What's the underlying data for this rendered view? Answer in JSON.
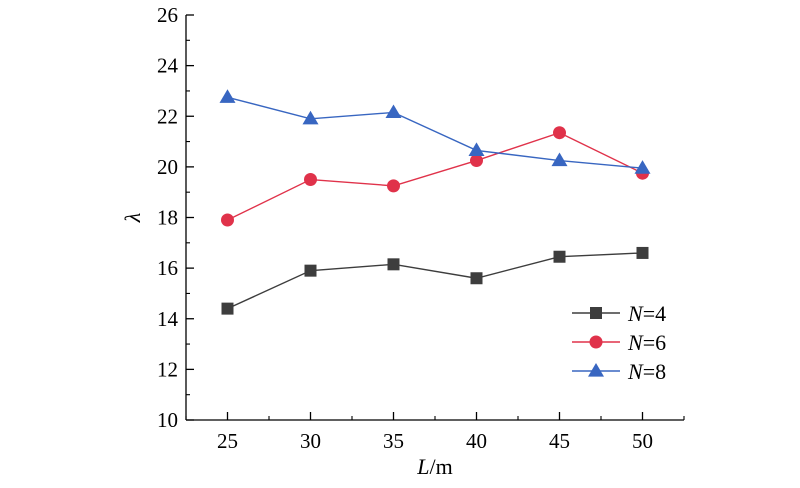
{
  "chart_data": {
    "type": "line",
    "title": "",
    "xlabel_italic": "L",
    "xlabel_unit": "/m",
    "ylabel": "λ",
    "x": [
      25,
      30,
      35,
      40,
      45,
      50
    ],
    "xticks": [
      25,
      30,
      35,
      40,
      45,
      50
    ],
    "yticks": [
      10,
      12,
      14,
      16,
      18,
      20,
      22,
      24,
      26
    ],
    "xlim": [
      22.5,
      52.5
    ],
    "ylim": [
      10,
      26
    ],
    "grid": false,
    "legend_position": "bottom-right",
    "series": [
      {
        "name_italic": "N",
        "name_rest": "=4",
        "marker": "square",
        "color": "#3d3d3d",
        "values": [
          14.4,
          15.9,
          16.15,
          15.6,
          16.45,
          16.6
        ]
      },
      {
        "name_italic": "N",
        "name_rest": "=6",
        "marker": "circle",
        "color": "#e0324a",
        "values": [
          17.9,
          19.5,
          19.25,
          20.25,
          21.35,
          19.75
        ]
      },
      {
        "name_italic": "N",
        "name_rest": "=8",
        "marker": "triangle",
        "color": "#3866c1",
        "values": [
          22.75,
          21.9,
          22.15,
          20.65,
          20.25,
          19.95
        ]
      }
    ]
  }
}
